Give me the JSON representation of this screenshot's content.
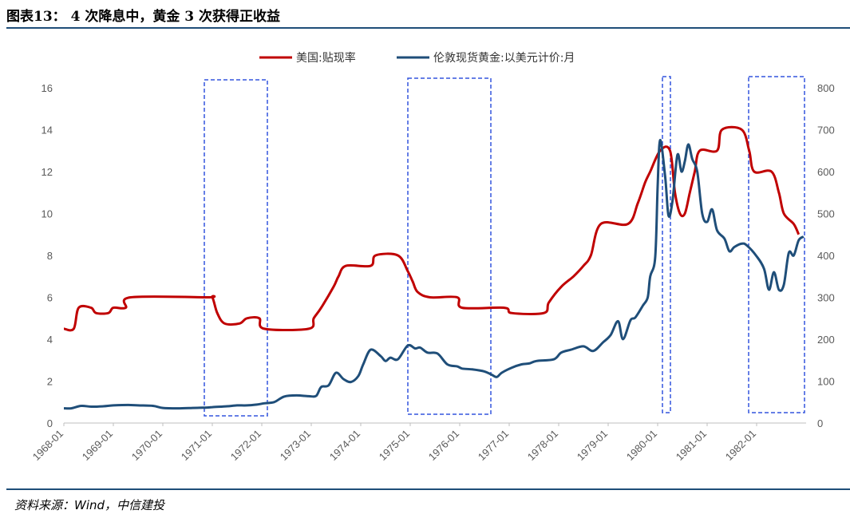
{
  "header": {
    "title": "图表13： 4 次降息中，黄金 3 次获得正收益"
  },
  "footer": {
    "source": "资料来源：Wind，中信建投"
  },
  "colors": {
    "series1": "#c00000",
    "series2": "#1f4e79",
    "box": "#3355dd",
    "rule": "#1f4e79"
  },
  "chart_data": {
    "type": "line",
    "x_labels": [
      "1968-01",
      "1969-01",
      "1970-01",
      "1971-01",
      "1972-01",
      "1973-01",
      "1974-01",
      "1975-01",
      "1976-01",
      "1977-01",
      "1978-01",
      "1979-01",
      "1980-01",
      "1981-01",
      "1982-01"
    ],
    "y_left": {
      "min": 0,
      "max": 16,
      "ticks": [
        0,
        2,
        4,
        6,
        8,
        10,
        12,
        14,
        16
      ]
    },
    "y_right": {
      "min": 0,
      "max": 800,
      "ticks": [
        0,
        100,
        200,
        300,
        400,
        500,
        600,
        700,
        800
      ]
    },
    "legend_position": "top-center",
    "grid": false,
    "series": [
      {
        "name": "美国:贴现率",
        "axis": "left",
        "points": [
          [
            1968.0,
            4.5
          ],
          [
            1968.2,
            4.5
          ],
          [
            1968.3,
            5.5
          ],
          [
            1968.55,
            5.5
          ],
          [
            1968.65,
            5.25
          ],
          [
            1968.9,
            5.25
          ],
          [
            1969.0,
            5.5
          ],
          [
            1969.25,
            5.5
          ],
          [
            1969.35,
            6.0
          ],
          [
            1970.9,
            6.0
          ],
          [
            1971.0,
            6.0
          ],
          [
            1971.1,
            5.25
          ],
          [
            1971.25,
            4.75
          ],
          [
            1971.55,
            4.75
          ],
          [
            1971.7,
            5.0
          ],
          [
            1971.95,
            5.0
          ],
          [
            1972.05,
            4.5
          ],
          [
            1972.95,
            4.5
          ],
          [
            1973.05,
            5.0
          ],
          [
            1973.2,
            5.5
          ],
          [
            1973.45,
            6.5
          ],
          [
            1973.55,
            7.0
          ],
          [
            1973.7,
            7.5
          ],
          [
            1974.2,
            7.5
          ],
          [
            1974.3,
            8.0
          ],
          [
            1974.75,
            8.0
          ],
          [
            1974.95,
            7.25
          ],
          [
            1975.05,
            6.75
          ],
          [
            1975.15,
            6.25
          ],
          [
            1975.4,
            6.0
          ],
          [
            1975.95,
            6.0
          ],
          [
            1976.05,
            5.5
          ],
          [
            1976.9,
            5.5
          ],
          [
            1977.05,
            5.25
          ],
          [
            1977.7,
            5.25
          ],
          [
            1977.8,
            5.75
          ],
          [
            1978.05,
            6.5
          ],
          [
            1978.3,
            7.0
          ],
          [
            1978.5,
            7.5
          ],
          [
            1978.65,
            8.0
          ],
          [
            1978.85,
            9.5
          ],
          [
            1979.4,
            9.5
          ],
          [
            1979.6,
            10.5
          ],
          [
            1979.75,
            11.5
          ],
          [
            1979.85,
            12.0
          ],
          [
            1980.05,
            13.0
          ],
          [
            1980.25,
            13.0
          ],
          [
            1980.35,
            11.0
          ],
          [
            1980.45,
            10.0
          ],
          [
            1980.55,
            10.0
          ],
          [
            1980.65,
            11.0
          ],
          [
            1980.75,
            12.0
          ],
          [
            1980.85,
            13.0
          ],
          [
            1981.2,
            13.0
          ],
          [
            1981.3,
            14.0
          ],
          [
            1981.7,
            14.0
          ],
          [
            1981.85,
            13.0
          ],
          [
            1981.95,
            12.0
          ],
          [
            1982.3,
            12.0
          ],
          [
            1982.45,
            11.0
          ],
          [
            1982.55,
            10.0
          ],
          [
            1982.75,
            9.5
          ],
          [
            1982.85,
            9.0
          ]
        ]
      },
      {
        "name": "伦敦现货黄金:以美元计价:月",
        "axis": "right",
        "points": [
          [
            1968.0,
            35
          ],
          [
            1968.15,
            35
          ],
          [
            1968.35,
            41
          ],
          [
            1968.55,
            39
          ],
          [
            1968.8,
            40
          ],
          [
            1969.0,
            42
          ],
          [
            1969.3,
            43
          ],
          [
            1969.5,
            42
          ],
          [
            1969.8,
            41
          ],
          [
            1970.0,
            36
          ],
          [
            1970.3,
            35
          ],
          [
            1970.6,
            36
          ],
          [
            1970.9,
            37
          ],
          [
            1971.0,
            38
          ],
          [
            1971.3,
            40
          ],
          [
            1971.5,
            42
          ],
          [
            1971.7,
            42
          ],
          [
            1971.9,
            44
          ],
          [
            1972.05,
            47
          ],
          [
            1972.25,
            50
          ],
          [
            1972.45,
            63
          ],
          [
            1972.7,
            66
          ],
          [
            1972.95,
            64
          ],
          [
            1973.1,
            65
          ],
          [
            1973.2,
            86
          ],
          [
            1973.35,
            90
          ],
          [
            1973.5,
            120
          ],
          [
            1973.65,
            105
          ],
          [
            1973.8,
            98
          ],
          [
            1973.95,
            112
          ],
          [
            1974.05,
            140
          ],
          [
            1974.2,
            175
          ],
          [
            1974.4,
            160
          ],
          [
            1974.5,
            148
          ],
          [
            1974.6,
            156
          ],
          [
            1974.75,
            152
          ],
          [
            1974.95,
            185
          ],
          [
            1975.1,
            178
          ],
          [
            1975.2,
            180
          ],
          [
            1975.35,
            168
          ],
          [
            1975.55,
            166
          ],
          [
            1975.75,
            140
          ],
          [
            1975.95,
            135
          ],
          [
            1976.05,
            130
          ],
          [
            1976.25,
            128
          ],
          [
            1976.5,
            123
          ],
          [
            1976.65,
            115
          ],
          [
            1976.75,
            110
          ],
          [
            1976.85,
            120
          ],
          [
            1977.05,
            132
          ],
          [
            1977.25,
            140
          ],
          [
            1977.4,
            142
          ],
          [
            1977.55,
            148
          ],
          [
            1977.9,
            152
          ],
          [
            1978.05,
            168
          ],
          [
            1978.25,
            175
          ],
          [
            1978.5,
            183
          ],
          [
            1978.7,
            172
          ],
          [
            1978.9,
            193
          ],
          [
            1979.05,
            210
          ],
          [
            1979.2,
            243
          ],
          [
            1979.3,
            200
          ],
          [
            1979.45,
            245
          ],
          [
            1979.55,
            252
          ],
          [
            1979.7,
            280
          ],
          [
            1979.8,
            300
          ],
          [
            1979.85,
            350
          ],
          [
            1979.95,
            395
          ],
          [
            1980.0,
            565
          ],
          [
            1980.05,
            675
          ],
          [
            1980.15,
            590
          ],
          [
            1980.22,
            495
          ],
          [
            1980.3,
            530
          ],
          [
            1980.4,
            640
          ],
          [
            1980.48,
            600
          ],
          [
            1980.55,
            625
          ],
          [
            1980.62,
            665
          ],
          [
            1980.7,
            630
          ],
          [
            1980.8,
            600
          ],
          [
            1980.9,
            500
          ],
          [
            1981.0,
            480
          ],
          [
            1981.1,
            510
          ],
          [
            1981.2,
            460
          ],
          [
            1981.35,
            440
          ],
          [
            1981.45,
            410
          ],
          [
            1981.55,
            420
          ],
          [
            1981.7,
            428
          ],
          [
            1981.8,
            424
          ],
          [
            1982.0,
            398
          ],
          [
            1982.15,
            368
          ],
          [
            1982.25,
            318
          ],
          [
            1982.35,
            360
          ],
          [
            1982.45,
            318
          ],
          [
            1982.55,
            330
          ],
          [
            1982.65,
            406
          ],
          [
            1982.75,
            400
          ],
          [
            1982.85,
            436
          ],
          [
            1982.95,
            445
          ]
        ]
      }
    ]
  }
}
